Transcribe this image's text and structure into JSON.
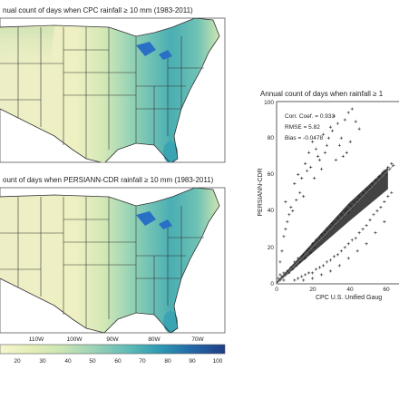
{
  "colors": {
    "ramp": [
      "#f5f5d0",
      "#e4eeb6",
      "#c9e4b4",
      "#9bd2b6",
      "#5fbcb6",
      "#2f99b3",
      "#2369a8",
      "#1f3d86"
    ],
    "lake": "#2a6fc6",
    "state_line": "#333333",
    "points": "#222222",
    "fit_line": "#888888"
  },
  "chart_data": [
    {
      "type": "heatmap",
      "title": "nual count of days when CPC rainfall ≥ 10 mm (1983-2011)"
    },
    {
      "type": "heatmap",
      "title": "ount of days when PERSIANN-CDR rainfall ≥ 10 mm (1983-2011)",
      "lon_ticks": [
        "110W",
        "100W",
        "90W",
        "80W",
        "70W"
      ]
    },
    {
      "type": "colorbar",
      "ticks": [
        "20",
        "30",
        "40",
        "50",
        "60",
        "70",
        "80",
        "90",
        "100"
      ],
      "range": [
        10,
        100
      ]
    },
    {
      "type": "scatter",
      "title": "Annual count of days when rainfall ≥ 1",
      "xlabel": "CPC U.S. Unified Gaug",
      "ylabel": "PERSIANN-CDR",
      "xlim": [
        0,
        65
      ],
      "ylim": [
        0,
        100
      ],
      "xticks": [
        "0",
        "20",
        "40",
        "60"
      ],
      "yticks": [
        "0",
        "20",
        "40",
        "60",
        "80",
        "100"
      ],
      "stats": [
        "Corr. Coef. = 0.933",
        "RMSE = 5.82",
        "Bias = -0.0478"
      ],
      "fit": {
        "slope": 1.0,
        "intercept": 0
      },
      "series": [
        {
          "points": [
            [
              1,
              3
            ],
            [
              2,
              2
            ],
            [
              2,
              5
            ],
            [
              3,
              4
            ],
            [
              4,
              2
            ],
            [
              4,
              6
            ],
            [
              5,
              5
            ],
            [
              6,
              7
            ],
            [
              7,
              6
            ],
            [
              8,
              9
            ],
            [
              9,
              8
            ],
            [
              10,
              12
            ],
            [
              11,
              10
            ],
            [
              12,
              14
            ],
            [
              13,
              12
            ],
            [
              14,
              15
            ],
            [
              15,
              16
            ],
            [
              16,
              14
            ],
            [
              17,
              18
            ],
            [
              18,
              19
            ],
            [
              19,
              17
            ],
            [
              20,
              22
            ],
            [
              21,
              20
            ],
            [
              22,
              24
            ],
            [
              23,
              23
            ],
            [
              24,
              25
            ],
            [
              25,
              27
            ],
            [
              26,
              26
            ],
            [
              27,
              28
            ],
            [
              28,
              30
            ],
            [
              29,
              29
            ],
            [
              30,
              31
            ],
            [
              31,
              33
            ],
            [
              32,
              32
            ],
            [
              33,
              34
            ],
            [
              34,
              36
            ],
            [
              35,
              35
            ],
            [
              36,
              38
            ],
            [
              37,
              37
            ],
            [
              38,
              40
            ],
            [
              39,
              41
            ],
            [
              40,
              39
            ],
            [
              41,
              43
            ],
            [
              42,
              42
            ],
            [
              43,
              45
            ],
            [
              44,
              44
            ],
            [
              45,
              46
            ],
            [
              46,
              48
            ],
            [
              47,
              47
            ],
            [
              48,
              50
            ],
            [
              49,
              49
            ],
            [
              50,
              52
            ],
            [
              51,
              51
            ],
            [
              52,
              53
            ],
            [
              53,
              55
            ],
            [
              54,
              54
            ],
            [
              55,
              57
            ],
            [
              56,
              56
            ],
            [
              57,
              59
            ],
            [
              58,
              58
            ],
            [
              59,
              61
            ],
            [
              60,
              62
            ],
            [
              61,
              60
            ],
            [
              62,
              64
            ],
            [
              63,
              63
            ],
            [
              64,
              66
            ],
            [
              65,
              65
            ],
            [
              2,
              12
            ],
            [
              3,
              18
            ],
            [
              4,
              26
            ],
            [
              5,
              30
            ],
            [
              6,
              34
            ],
            [
              7,
              38
            ],
            [
              8,
              42
            ],
            [
              5,
              45
            ],
            [
              9,
              40
            ],
            [
              10,
              55
            ],
            [
              12,
              60
            ],
            [
              14,
              58
            ],
            [
              15,
              48
            ],
            [
              16,
              66
            ],
            [
              18,
              72
            ],
            [
              20,
              78
            ],
            [
              22,
              74
            ],
            [
              24,
              68
            ],
            [
              26,
              82
            ],
            [
              28,
              76
            ],
            [
              17,
              62
            ],
            [
              19,
              64
            ],
            [
              21,
              58
            ],
            [
              13,
              50
            ],
            [
              11,
              46
            ],
            [
              23,
              70
            ],
            [
              25,
              63
            ],
            [
              27,
              72
            ],
            [
              29,
              80
            ],
            [
              30,
              86
            ],
            [
              32,
              92
            ],
            [
              34,
              88
            ],
            [
              31,
              84
            ],
            [
              36,
              80
            ],
            [
              38,
              90
            ],
            [
              40,
              94
            ],
            [
              42,
              96
            ],
            [
              44,
              89
            ],
            [
              46,
              85
            ],
            [
              35,
              76
            ],
            [
              37,
              70
            ],
            [
              33,
              68
            ],
            [
              39,
              72
            ],
            [
              41,
              78
            ],
            [
              10,
              2
            ],
            [
              12,
              3
            ],
            [
              14,
              4
            ],
            [
              16,
              5
            ],
            [
              18,
              6
            ],
            [
              20,
              6
            ],
            [
              22,
              8
            ],
            [
              24,
              9
            ],
            [
              26,
              10
            ],
            [
              28,
              12
            ],
            [
              30,
              13
            ],
            [
              32,
              15
            ],
            [
              34,
              16
            ],
            [
              36,
              18
            ],
            [
              38,
              20
            ],
            [
              40,
              22
            ],
            [
              42,
              24
            ],
            [
              44,
              25
            ],
            [
              46,
              28
            ],
            [
              48,
              30
            ],
            [
              50,
              32
            ],
            [
              52,
              35
            ],
            [
              54,
              38
            ],
            [
              56,
              40
            ],
            [
              58,
              42
            ],
            [
              60,
              45
            ],
            [
              62,
              48
            ],
            [
              64,
              50
            ],
            [
              15,
              2
            ],
            [
              20,
              3
            ],
            [
              25,
              5
            ],
            [
              30,
              7
            ],
            [
              35,
              10
            ],
            [
              40,
              14
            ],
            [
              45,
              18
            ],
            [
              50,
              22
            ],
            [
              55,
              28
            ],
            [
              60,
              34
            ]
          ]
        }
      ]
    }
  ]
}
